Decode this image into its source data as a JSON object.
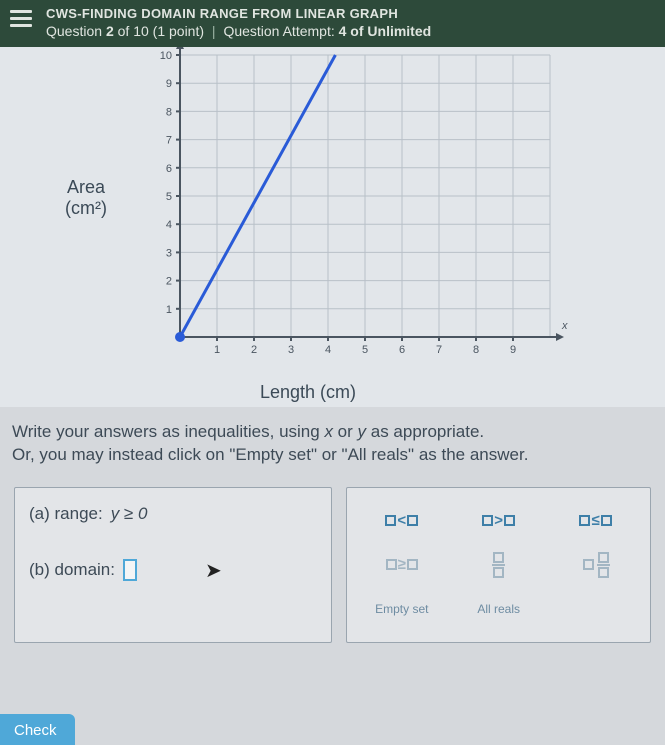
{
  "header": {
    "title": "CWS-FINDING DOMAIN RANGE FROM LINEAR GRAPH",
    "question_prefix": "Question",
    "question_num": "2",
    "question_of": "of 10",
    "points": "(1 point)",
    "attempt_label": "Question Attempt:",
    "attempt_value": "4 of Unlimited"
  },
  "chart": {
    "type": "line",
    "ylabel_line1": "Area",
    "ylabel_line2": "(cm²)",
    "xlabel": "Length (cm)",
    "xlim": [
      0,
      10
    ],
    "ylim": [
      0,
      10
    ],
    "xtick_step": 1,
    "ytick_step": 1,
    "xticks": [
      1,
      2,
      3,
      4,
      5,
      6,
      7,
      8,
      9
    ],
    "yticks": [
      1,
      2,
      3,
      4,
      5,
      6,
      7,
      8,
      9,
      10
    ],
    "grid_color": "#b8c0c8",
    "axis_color": "#4a5560",
    "background_color": "#e2e6ea",
    "line_color": "#2a5bd7",
    "line_width": 3,
    "endpoint_fill": "#2a5bd7",
    "endpoint_radius": 5,
    "series": [
      {
        "points": [
          [
            0,
            0
          ],
          [
            4.2,
            10
          ]
        ]
      }
    ],
    "x_axis_var": "x",
    "tick_fontsize": 11,
    "label_fontsize": 18
  },
  "instruction": {
    "line1a": "Write your answers as inequalities, using ",
    "var1": "x",
    "line1b": " or ",
    "var2": "y",
    "line1c": " as appropriate.",
    "line2a": "Or, you may instead click on ",
    "q1": "\"Empty set\"",
    "line2b": " or ",
    "q2": "\"All reals\"",
    "line2c": " as the answer."
  },
  "questions": {
    "a_label": "(a) range:",
    "a_value": "y ≥ 0",
    "b_label": "(b) domain:"
  },
  "keypad": {
    "lt": "<",
    "gt": ">",
    "le": "≤",
    "ge": "≥",
    "empty": "Empty set",
    "all": "All reals"
  },
  "buttons": {
    "check": "Check"
  },
  "colors": {
    "header_bg": "#2d4a3a",
    "body_bg": "#d5d8dc",
    "accent": "#4fa8d8"
  }
}
